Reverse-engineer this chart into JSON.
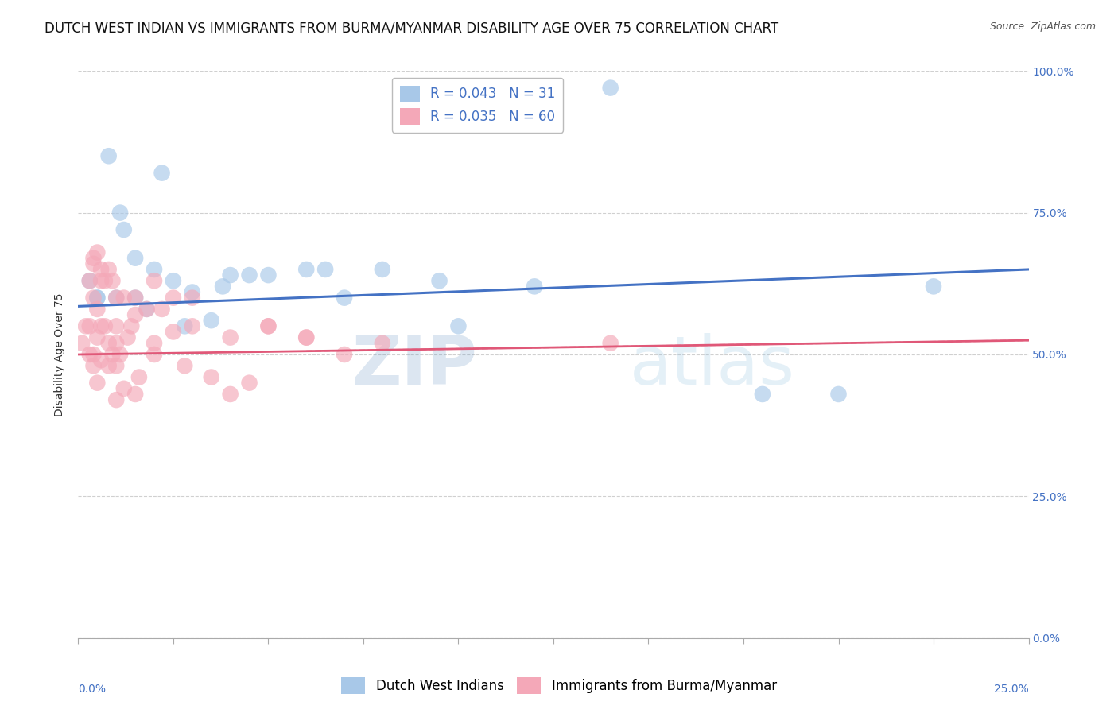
{
  "title": "DUTCH WEST INDIAN VS IMMIGRANTS FROM BURMA/MYANMAR DISABILITY AGE OVER 75 CORRELATION CHART",
  "source": "Source: ZipAtlas.com",
  "ylabel": "Disability Age Over 75",
  "ytick_labels": [
    "0.0%",
    "25.0%",
    "50.0%",
    "75.0%",
    "100.0%"
  ],
  "ytick_values": [
    0,
    25,
    50,
    75,
    100
  ],
  "xlim": [
    0,
    25
  ],
  "ylim": [
    0,
    100
  ],
  "blue_label": "Dutch West Indians",
  "pink_label": "Immigrants from Burma/Myanmar",
  "blue_R": 0.043,
  "blue_N": 31,
  "pink_R": 0.035,
  "pink_N": 60,
  "blue_color": "#a8c8e8",
  "pink_color": "#f4a8b8",
  "blue_line_color": "#4472c4",
  "pink_line_color": "#e05878",
  "blue_scatter_x": [
    0.3,
    0.5,
    0.8,
    1.0,
    1.2,
    1.5,
    1.8,
    2.0,
    2.2,
    2.5,
    2.8,
    3.0,
    3.5,
    4.0,
    4.5,
    5.0,
    6.0,
    6.5,
    7.0,
    8.0,
    9.5,
    10.0,
    12.0,
    14.0,
    18.0,
    20.0,
    22.5,
    3.8,
    1.5,
    1.1,
    0.5
  ],
  "blue_scatter_y": [
    63,
    60,
    85,
    60,
    72,
    60,
    58,
    65,
    82,
    63,
    55,
    61,
    56,
    64,
    64,
    64,
    65,
    65,
    60,
    65,
    63,
    55,
    62,
    97,
    43,
    43,
    62,
    62,
    67,
    75,
    60
  ],
  "pink_scatter_x": [
    0.1,
    0.2,
    0.3,
    0.3,
    0.3,
    0.4,
    0.4,
    0.4,
    0.4,
    0.5,
    0.5,
    0.5,
    0.5,
    0.6,
    0.6,
    0.6,
    0.7,
    0.7,
    0.8,
    0.8,
    0.9,
    0.9,
    1.0,
    1.0,
    1.0,
    1.0,
    1.1,
    1.2,
    1.3,
    1.4,
    1.5,
    1.5,
    1.6,
    1.8,
    2.0,
    2.0,
    2.2,
    2.5,
    2.8,
    3.0,
    3.5,
    4.0,
    4.5,
    5.0,
    6.0,
    7.0,
    8.0,
    14.0,
    0.4,
    0.6,
    0.8,
    1.0,
    1.2,
    1.5,
    2.0,
    2.5,
    3.0,
    4.0,
    5.0,
    6.0
  ],
  "pink_scatter_y": [
    52,
    55,
    63,
    55,
    50,
    67,
    66,
    60,
    50,
    68,
    58,
    53,
    45,
    65,
    63,
    55,
    63,
    55,
    65,
    52,
    63,
    50,
    60,
    55,
    52,
    42,
    50,
    60,
    53,
    55,
    60,
    43,
    46,
    58,
    63,
    50,
    58,
    60,
    48,
    60,
    46,
    43,
    45,
    55,
    53,
    50,
    52,
    52,
    48,
    49,
    48,
    48,
    44,
    57,
    52,
    54,
    55,
    53,
    55,
    53
  ],
  "watermark_zip": "ZIP",
  "watermark_atlas": "atlas",
  "background_color": "#ffffff",
  "grid_color": "#d0d0d0",
  "title_fontsize": 12,
  "axis_label_fontsize": 10,
  "tick_fontsize": 10,
  "legend_fontsize": 12
}
